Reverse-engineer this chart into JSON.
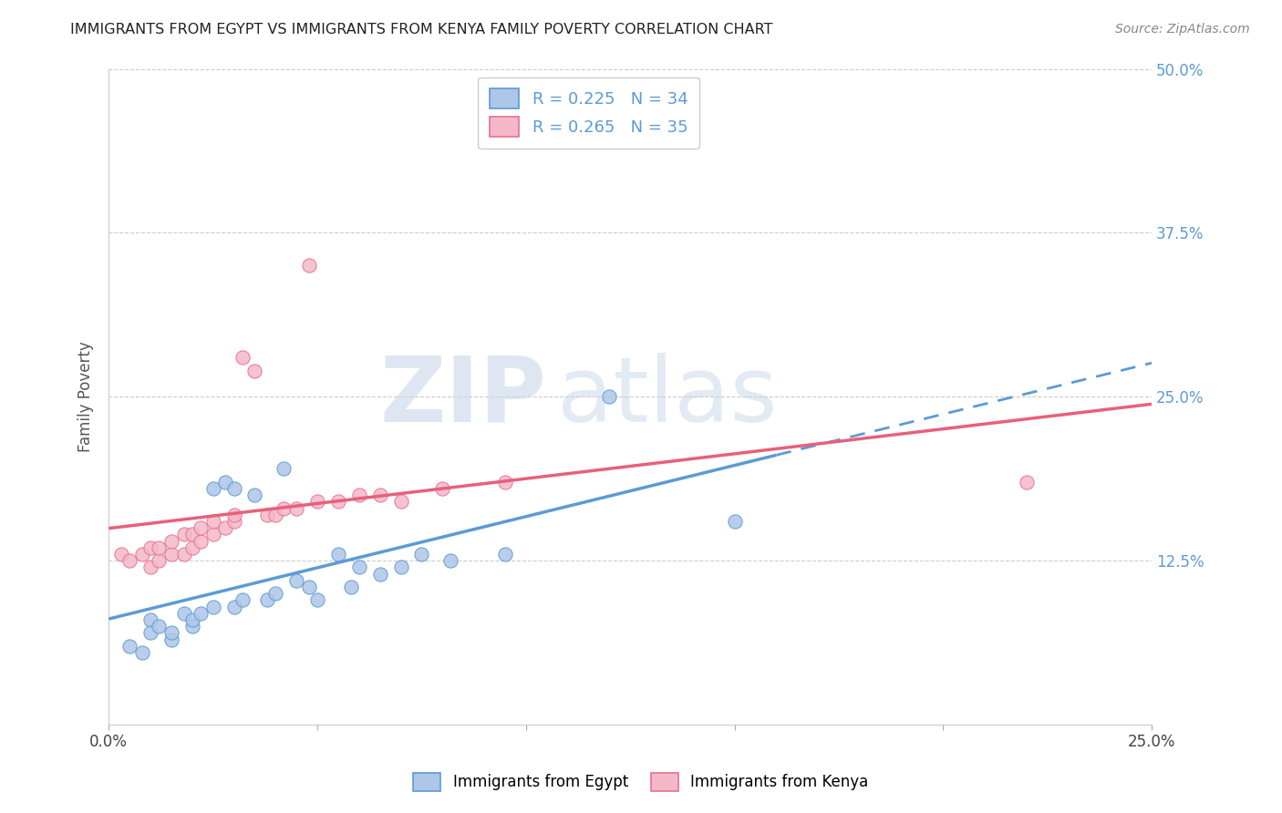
{
  "title": "IMMIGRANTS FROM EGYPT VS IMMIGRANTS FROM KENYA FAMILY POVERTY CORRELATION CHART",
  "source": "Source: ZipAtlas.com",
  "ylabel_label": "Family Poverty",
  "xlim": [
    0.0,
    0.25
  ],
  "ylim": [
    0.0,
    0.5
  ],
  "ytick_vals": [
    0.0,
    0.125,
    0.25,
    0.375,
    0.5
  ],
  "ytick_labels_right": [
    "",
    "12.5%",
    "25.0%",
    "37.5%",
    "50.0%"
  ],
  "egypt_fill_color": "#aec6e8",
  "egypt_edge_color": "#5b9bd5",
  "kenya_fill_color": "#f4b8c8",
  "kenya_edge_color": "#e87090",
  "egypt_line_color": "#5b9bd5",
  "kenya_line_color": "#e8607a",
  "R_egypt": 0.225,
  "N_egypt": 34,
  "R_kenya": 0.265,
  "N_kenya": 35,
  "egypt_scatter_x": [
    0.005,
    0.008,
    0.01,
    0.01,
    0.012,
    0.015,
    0.015,
    0.018,
    0.02,
    0.02,
    0.022,
    0.025,
    0.025,
    0.028,
    0.03,
    0.03,
    0.032,
    0.035,
    0.038,
    0.04,
    0.042,
    0.045,
    0.048,
    0.05,
    0.055,
    0.058,
    0.06,
    0.065,
    0.07,
    0.075,
    0.082,
    0.095,
    0.12,
    0.15
  ],
  "egypt_scatter_y": [
    0.06,
    0.055,
    0.08,
    0.07,
    0.075,
    0.065,
    0.07,
    0.085,
    0.075,
    0.08,
    0.085,
    0.09,
    0.18,
    0.185,
    0.09,
    0.18,
    0.095,
    0.175,
    0.095,
    0.1,
    0.195,
    0.11,
    0.105,
    0.095,
    0.13,
    0.105,
    0.12,
    0.115,
    0.12,
    0.13,
    0.125,
    0.13,
    0.25,
    0.155
  ],
  "kenya_scatter_x": [
    0.003,
    0.005,
    0.008,
    0.01,
    0.01,
    0.012,
    0.012,
    0.015,
    0.015,
    0.018,
    0.018,
    0.02,
    0.02,
    0.022,
    0.022,
    0.025,
    0.025,
    0.028,
    0.03,
    0.03,
    0.032,
    0.035,
    0.038,
    0.04,
    0.042,
    0.045,
    0.048,
    0.05,
    0.055,
    0.06,
    0.065,
    0.07,
    0.08,
    0.095,
    0.22
  ],
  "kenya_scatter_y": [
    0.13,
    0.125,
    0.13,
    0.12,
    0.135,
    0.125,
    0.135,
    0.13,
    0.14,
    0.13,
    0.145,
    0.135,
    0.145,
    0.14,
    0.15,
    0.145,
    0.155,
    0.15,
    0.155,
    0.16,
    0.28,
    0.27,
    0.16,
    0.16,
    0.165,
    0.165,
    0.35,
    0.17,
    0.17,
    0.175,
    0.175,
    0.17,
    0.18,
    0.185,
    0.185
  ],
  "watermark_zip": "ZIP",
  "watermark_atlas": "atlas",
  "bg_color": "#ffffff",
  "grid_color": "#cccccc",
  "spine_color": "#cccccc"
}
